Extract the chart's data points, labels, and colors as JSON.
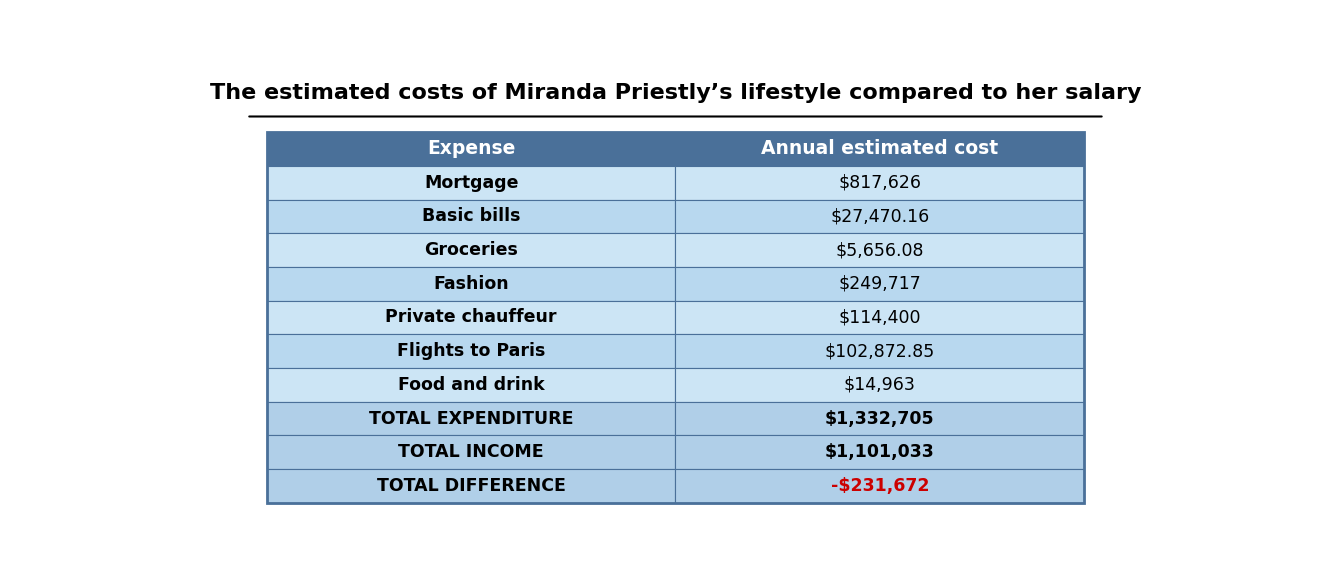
{
  "title": "The estimated costs of Miranda Priestly’s lifestyle compared to her salary",
  "header": [
    "Expense",
    "Annual estimated cost"
  ],
  "rows": [
    [
      "Mortgage",
      "$817,626"
    ],
    [
      "Basic bills",
      "$27,470.16"
    ],
    [
      "Groceries",
      "$5,656.08"
    ],
    [
      "Fashion",
      "$249,717"
    ],
    [
      "Private chauffeur",
      "$114,400"
    ],
    [
      "Flights to Paris",
      "$102,872.85"
    ],
    [
      "Food and drink",
      "$14,963"
    ],
    [
      "TOTAL EXPENDITURE",
      "$1,332,705"
    ],
    [
      "TOTAL INCOME",
      "$1,101,033"
    ],
    [
      "TOTAL DIFFERENCE",
      "-$231,672"
    ]
  ],
  "header_bg": "#4a7099",
  "row_bg_light": "#cce5f5",
  "row_bg_lighter": "#b8d8ef",
  "total_bg": "#b0cfe8",
  "header_text_color": "#ffffff",
  "normal_text_color": "#000000",
  "diff_text_color": "#cc0000",
  "title_color": "#000000",
  "bg_color": "#ffffff",
  "table_border_color": "#4a7099"
}
